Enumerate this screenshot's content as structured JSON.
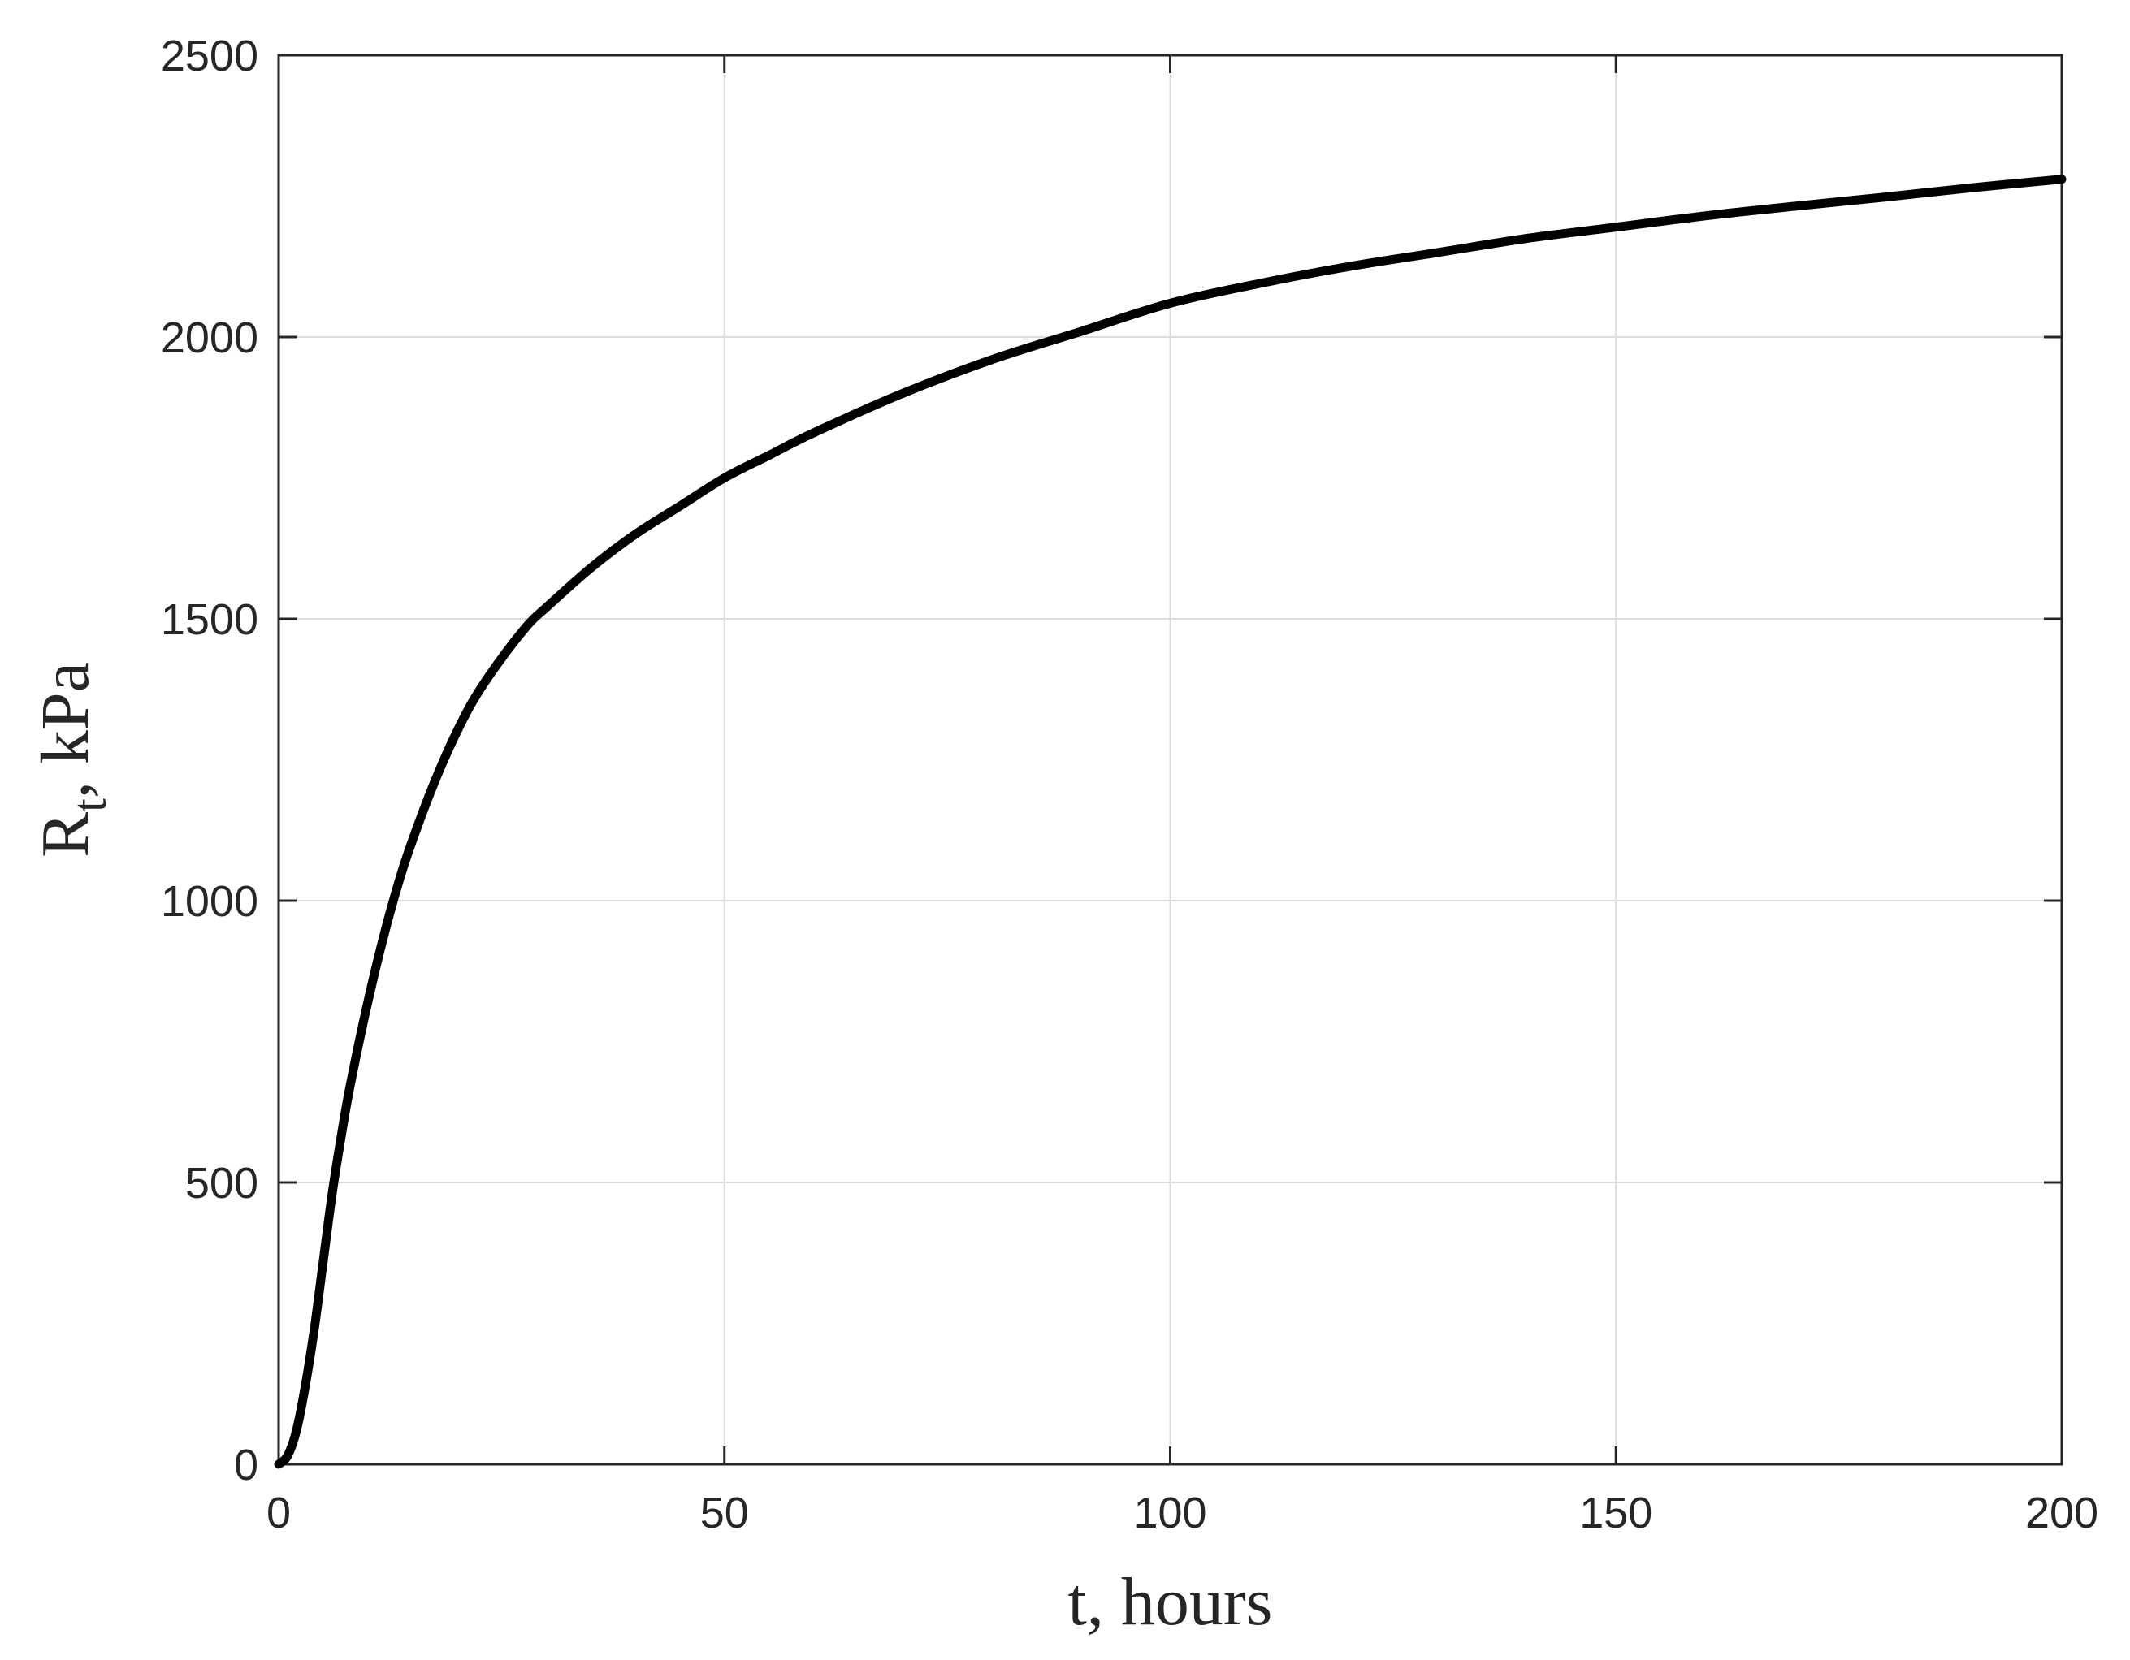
{
  "chart_data": {
    "type": "line",
    "title": "",
    "xlabel": "t, hours",
    "ylabel_main": "R",
    "ylabel_sub": "t",
    "ylabel_rest": ", kPa",
    "xlim": [
      0,
      200
    ],
    "ylim": [
      0,
      2500
    ],
    "xticks": [
      0,
      50,
      100,
      150,
      200
    ],
    "yticks": [
      0,
      500,
      1000,
      1500,
      2000,
      2500
    ],
    "xtick_labels": [
      "0",
      "50",
      "100",
      "150",
      "200"
    ],
    "ytick_labels": [
      "0",
      "500",
      "1000",
      "1500",
      "2000",
      "2500"
    ],
    "grid": true,
    "line_color": "#000000",
    "grid_color": "#dcdcdc",
    "axis_color": "#262626",
    "series": [
      {
        "x": [
          0,
          1,
          2,
          3,
          4,
          5,
          6,
          7,
          8,
          10,
          12,
          14,
          16,
          18,
          20,
          22,
          25,
          28,
          30,
          35,
          40,
          45,
          50,
          55,
          60,
          70,
          80,
          90,
          100,
          110,
          120,
          130,
          140,
          150,
          160,
          170,
          180,
          190,
          200
        ],
        "y": [
          0,
          15,
          60,
          140,
          240,
          360,
          480,
          580,
          670,
          820,
          950,
          1060,
          1150,
          1230,
          1300,
          1360,
          1430,
          1490,
          1520,
          1590,
          1650,
          1700,
          1750,
          1790,
          1830,
          1900,
          1960,
          2010,
          2060,
          2095,
          2125,
          2150,
          2175,
          2195,
          2215,
          2232,
          2248,
          2265,
          2280
        ]
      }
    ]
  }
}
